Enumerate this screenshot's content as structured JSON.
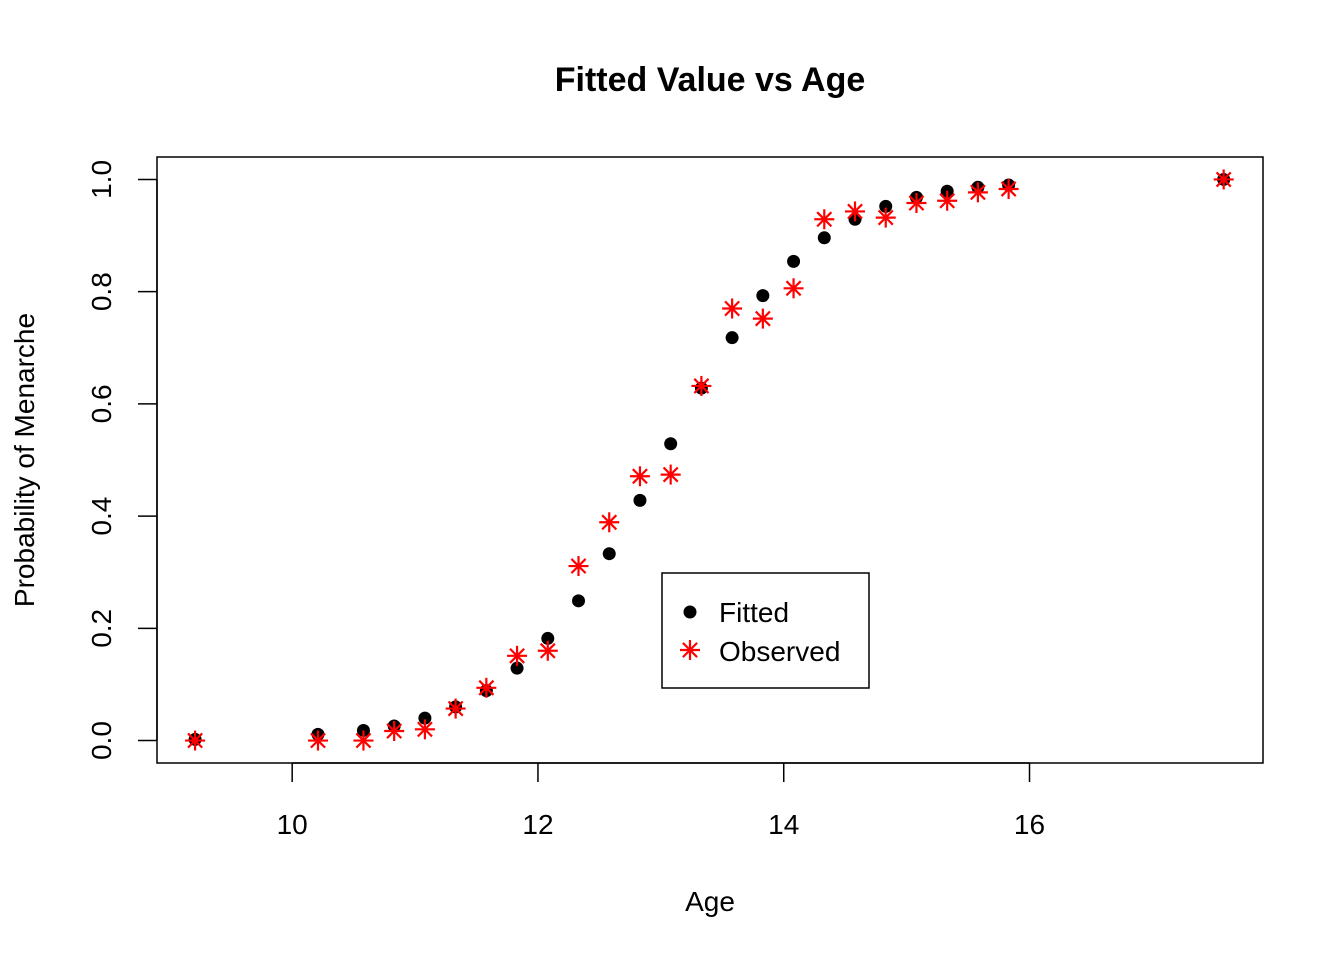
{
  "chart_data": {
    "type": "scatter",
    "title": "Fitted Value vs Age",
    "xlabel": "Age",
    "ylabel": "Probability of Menarche",
    "xlim": [
      8.9,
      17.9
    ],
    "ylim": [
      -0.04,
      1.04
    ],
    "xticks": [
      10,
      12,
      14,
      16
    ],
    "yticks": [
      0.0,
      0.2,
      0.4,
      0.6,
      0.8,
      1.0
    ],
    "xtick_labels": [
      "10",
      "12",
      "14",
      "16"
    ],
    "ytick_labels": [
      "0.0",
      "0.2",
      "0.4",
      "0.6",
      "0.8",
      "1.0"
    ],
    "legend_position": "center",
    "grid": false,
    "series": [
      {
        "name": "Fitted",
        "marker": "filled-circle",
        "color": "#000000",
        "x": [
          9.21,
          10.21,
          10.58,
          10.83,
          11.08,
          11.33,
          11.58,
          11.83,
          12.08,
          12.33,
          12.58,
          12.83,
          13.08,
          13.33,
          13.58,
          13.83,
          14.08,
          14.33,
          14.58,
          14.83,
          15.08,
          15.33,
          15.58,
          15.83,
          17.58
        ],
        "y": [
          0.002,
          0.011,
          0.018,
          0.026,
          0.04,
          0.06,
          0.089,
          0.129,
          0.182,
          0.249,
          0.333,
          0.428,
          0.529,
          0.628,
          0.718,
          0.793,
          0.854,
          0.896,
          0.929,
          0.952,
          0.968,
          0.979,
          0.986,
          0.99,
          1.0
        ]
      },
      {
        "name": "Observed",
        "marker": "asterisk",
        "color": "#ff0000",
        "x": [
          9.21,
          10.21,
          10.58,
          10.83,
          11.08,
          11.33,
          11.58,
          11.83,
          12.08,
          12.33,
          12.58,
          12.83,
          13.08,
          13.33,
          13.58,
          13.83,
          14.08,
          14.33,
          14.58,
          14.83,
          15.08,
          15.33,
          15.58,
          15.83,
          17.58
        ],
        "y": [
          0.0,
          0.0,
          0.0,
          0.017,
          0.02,
          0.057,
          0.094,
          0.151,
          0.16,
          0.311,
          0.389,
          0.471,
          0.474,
          0.632,
          0.77,
          0.752,
          0.806,
          0.929,
          0.943,
          0.932,
          0.958,
          0.962,
          0.977,
          0.983,
          1.0
        ]
      }
    ]
  }
}
